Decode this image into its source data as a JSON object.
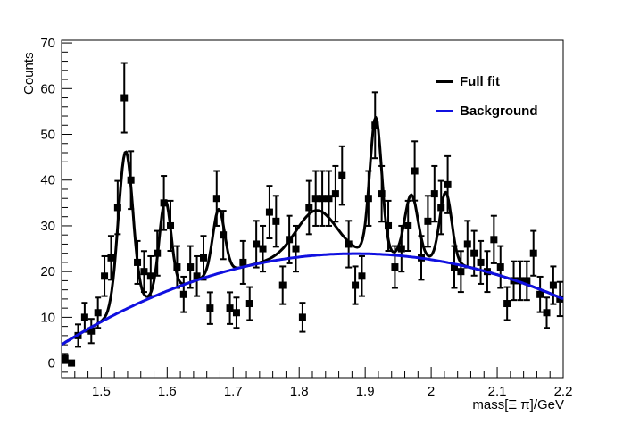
{
  "chart_data": {
    "type": "scatter",
    "title": "",
    "xlabel": "mass[Ξ π]/GeV",
    "ylabel": "Counts",
    "xlim": [
      1.44,
      2.2
    ],
    "ylim": [
      -3.2,
      70.6
    ],
    "grid": false,
    "legend_position": "top-right",
    "x_ticks": {
      "major": [
        1.5,
        1.6,
        1.7,
        1.8,
        1.9,
        2.0,
        2.1,
        2.2
      ],
      "labels": [
        "1.5",
        "1.6",
        "1.7",
        "1.8",
        "1.9",
        "2",
        "2.1",
        "2.2"
      ],
      "minor_step": 0.02
    },
    "y_ticks": {
      "major": [
        0,
        10,
        20,
        30,
        40,
        50,
        60,
        70
      ],
      "labels": [
        "0",
        "10",
        "20",
        "30",
        "40",
        "50",
        "60",
        "70"
      ],
      "minor_step": 2
    },
    "data_series": {
      "name": "data-points",
      "marker": "filled-square",
      "color": "#000000",
      "error_rule": "poisson_sqrt",
      "x": [
        1.445,
        1.455,
        1.465,
        1.475,
        1.485,
        1.495,
        1.505,
        1.515,
        1.525,
        1.535,
        1.545,
        1.555,
        1.565,
        1.575,
        1.585,
        1.595,
        1.605,
        1.615,
        1.625,
        1.635,
        1.645,
        1.655,
        1.665,
        1.675,
        1.685,
        1.695,
        1.705,
        1.715,
        1.725,
        1.735,
        1.745,
        1.755,
        1.765,
        1.775,
        1.785,
        1.795,
        1.805,
        1.815,
        1.825,
        1.835,
        1.845,
        1.855,
        1.865,
        1.875,
        1.885,
        1.895,
        1.905,
        1.915,
        1.925,
        1.935,
        1.945,
        1.955,
        1.965,
        1.975,
        1.985,
        1.995,
        2.005,
        2.015,
        2.025,
        2.035,
        2.045,
        2.055,
        2.065,
        2.075,
        2.085,
        2.095,
        2.105,
        2.115,
        2.125,
        2.135,
        2.145,
        2.155,
        2.165,
        2.175,
        2.185,
        2.195
      ],
      "y": [
        1,
        0,
        6,
        10,
        7,
        11,
        19,
        23,
        34,
        58,
        40,
        22,
        20,
        19,
        24,
        35,
        30,
        21,
        15,
        21,
        19,
        23,
        12,
        36,
        28,
        12,
        11,
        22,
        13,
        26,
        25,
        33,
        31,
        17,
        27,
        25,
        10,
        34,
        36,
        36,
        36,
        37,
        41,
        26,
        17,
        19,
        36,
        52,
        37,
        30,
        21,
        25,
        30,
        42,
        23,
        31,
        37,
        34,
        39,
        21,
        20,
        26,
        24,
        22,
        20,
        27,
        21,
        13,
        18,
        18,
        18,
        24,
        15,
        11,
        17,
        14
      ]
    },
    "fit_curve": {
      "name": "Full fit",
      "color": "#000000",
      "background_poly": [
        -332.3,
        377.85,
        -100.2
      ],
      "peaks": [
        {
          "center": 1.537,
          "amplitude": 34.5,
          "sigma": 0.011
        },
        {
          "center": 1.597,
          "amplitude": 20.0,
          "sigma": 0.009
        },
        {
          "center": 1.678,
          "amplitude": 14.0,
          "sigma": 0.009
        },
        {
          "center": 1.826,
          "amplitude": 9.8,
          "sigma": 0.03
        },
        {
          "center": 1.916,
          "amplitude": 29.8,
          "sigma": 0.009
        },
        {
          "center": 1.97,
          "amplitude": 13.6,
          "sigma": 0.01
        },
        {
          "center": 2.022,
          "amplitude": 15.3,
          "sigma": 0.009
        }
      ]
    },
    "background_curve": {
      "name": "Background",
      "color": "#1010e0",
      "background_poly": [
        -332.3,
        377.85,
        -100.2
      ]
    },
    "legend": {
      "entries": [
        {
          "label": "Full fit",
          "color": "#000000"
        },
        {
          "label": "Background",
          "color": "#1010e0"
        }
      ]
    }
  }
}
